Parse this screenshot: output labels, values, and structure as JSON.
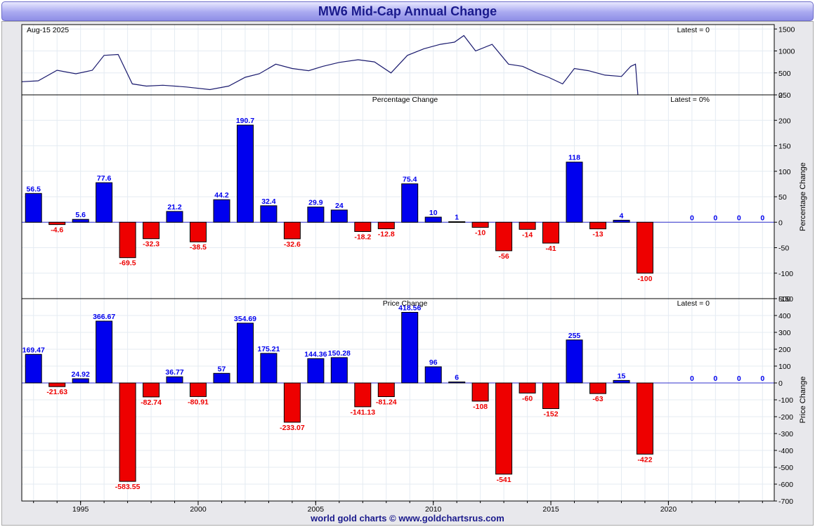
{
  "title": "MW6 Mid-Cap Annual Change",
  "footer": "world gold charts © www.goldchartsrus.com",
  "colors": {
    "positive": "#0000ee",
    "negative": "#ee0000",
    "line": "#1a1a6e",
    "title": "#1a1a8c"
  },
  "chart_data": [
    {
      "type": "line",
      "panel": "price",
      "date_label": "Aug-15  2025",
      "latest_label": "Latest = 0",
      "y_ticks": [
        0,
        500,
        1000,
        1500
      ],
      "ylim": [
        0,
        1600
      ],
      "xlim": [
        1992.5,
        2024.5
      ],
      "x": [
        1992.5,
        1993.2,
        1994.0,
        1994.8,
        1995.5,
        1996.0,
        1996.6,
        1997.2,
        1997.8,
        1998.5,
        1999.5,
        2000.5,
        2001.3,
        2002.0,
        2002.6,
        2003.3,
        2004.0,
        2004.7,
        2005.3,
        2006.0,
        2006.8,
        2007.5,
        2008.2,
        2008.9,
        2009.6,
        2010.3,
        2010.9,
        2011.3,
        2011.8,
        2012.5,
        2013.2,
        2013.8,
        2014.4,
        2014.9,
        2015.5,
        2016.0,
        2016.6,
        2017.3,
        2018.0,
        2018.4,
        2018.6,
        2018.7
      ],
      "y": [
        300,
        320,
        560,
        480,
        560,
        900,
        920,
        250,
        200,
        220,
        180,
        120,
        200,
        400,
        480,
        700,
        600,
        550,
        650,
        740,
        800,
        750,
        500,
        900,
        1050,
        1150,
        1200,
        1350,
        1000,
        1150,
        700,
        650,
        500,
        400,
        250,
        600,
        550,
        450,
        420,
        650,
        700,
        0
      ]
    },
    {
      "type": "bar",
      "panel": "percentage",
      "title": "Percentage Change",
      "ylabel": "Percentage Change",
      "latest_label": "Latest = 0%",
      "ylim": [
        -150,
        250
      ],
      "y_ticks": [
        -150,
        -100,
        -50,
        0,
        50,
        100,
        150,
        200,
        250
      ],
      "categories": [
        1993,
        1994,
        1995,
        1996,
        1997,
        1998,
        1999,
        2000,
        2001,
        2002,
        2003,
        2004,
        2005,
        2006,
        2007,
        2008,
        2009,
        2010,
        2011,
        2012,
        2013,
        2014,
        2015,
        2016,
        2017,
        2018,
        2019,
        2020,
        2021,
        2022,
        2023,
        2024
      ],
      "values": [
        56.5,
        -4.6,
        5.6,
        77.6,
        -69.5,
        -32.3,
        21.2,
        -38.5,
        44.2,
        190.7,
        32.4,
        -32.6,
        29.9,
        24,
        -18.2,
        -12.8,
        75.4,
        10,
        1,
        -10,
        -56,
        -14,
        -41,
        118,
        -13,
        4,
        -100,
        0,
        0,
        0,
        0,
        0
      ],
      "labels": [
        "56.5",
        "-4.6",
        "5.6",
        "77.6",
        "-69.5",
        "-32.3",
        "21.2",
        "-38.5",
        "44.2",
        "190.7",
        "32.4",
        "-32.6",
        "29.9",
        "24",
        "-18.2",
        "-12.8",
        "75.4",
        "10",
        "1",
        "-10",
        "-56",
        "-14",
        "-41",
        "118",
        "-13",
        "4",
        "-100",
        "0",
        "0",
        "0",
        "0",
        "0"
      ],
      "label_shown": [
        true,
        true,
        true,
        true,
        true,
        true,
        true,
        true,
        true,
        true,
        true,
        true,
        true,
        true,
        true,
        true,
        true,
        true,
        true,
        true,
        true,
        true,
        true,
        true,
        true,
        true,
        true,
        false,
        true,
        true,
        true,
        true
      ]
    },
    {
      "type": "bar",
      "panel": "price-change",
      "title": "Price Change",
      "ylabel": "Price Change",
      "latest_label": "Latest = 0",
      "ylim": [
        -700,
        500
      ],
      "y_ticks": [
        -700,
        -600,
        -500,
        -400,
        -300,
        -200,
        -100,
        0,
        100,
        200,
        300,
        400,
        500
      ],
      "categories": [
        1993,
        1994,
        1995,
        1996,
        1997,
        1998,
        1999,
        2000,
        2001,
        2002,
        2003,
        2004,
        2005,
        2006,
        2007,
        2008,
        2009,
        2010,
        2011,
        2012,
        2013,
        2014,
        2015,
        2016,
        2017,
        2018,
        2019,
        2020,
        2021,
        2022,
        2023,
        2024
      ],
      "values": [
        169.47,
        -21.63,
        24.92,
        366.67,
        -583.55,
        -82.74,
        36.77,
        -80.91,
        57,
        354.69,
        175.21,
        -233.07,
        144.36,
        150.28,
        -141.13,
        -81.24,
        418.56,
        96,
        6,
        -108,
        -541,
        -60,
        -152,
        255,
        -63,
        15,
        -422,
        0,
        0,
        0,
        0,
        0
      ],
      "labels": [
        "169.47",
        "-21.63",
        "24.92",
        "366.67",
        "-583.55",
        "-82.74",
        "36.77",
        "-80.91",
        "57",
        "354.69",
        "175.21",
        "-233.07",
        "144.36",
        "150.28",
        "-141.13",
        "-81.24",
        "418.56",
        "96",
        "6",
        "-108",
        "-541",
        "-60",
        "-152",
        "255",
        "-63",
        "15",
        "-422",
        "0",
        "0",
        "0",
        "0",
        "0"
      ],
      "label_shown": [
        true,
        true,
        true,
        true,
        true,
        true,
        true,
        true,
        true,
        true,
        true,
        true,
        true,
        true,
        true,
        true,
        true,
        true,
        true,
        true,
        true,
        true,
        true,
        true,
        true,
        true,
        true,
        false,
        true,
        true,
        true,
        true
      ]
    }
  ],
  "x_axis": {
    "tick_labels": [
      "1995",
      "2000",
      "2005",
      "2010",
      "2015",
      "2020"
    ],
    "tick_years": [
      1995,
      2000,
      2005,
      2010,
      2015,
      2020
    ],
    "grid": true
  }
}
